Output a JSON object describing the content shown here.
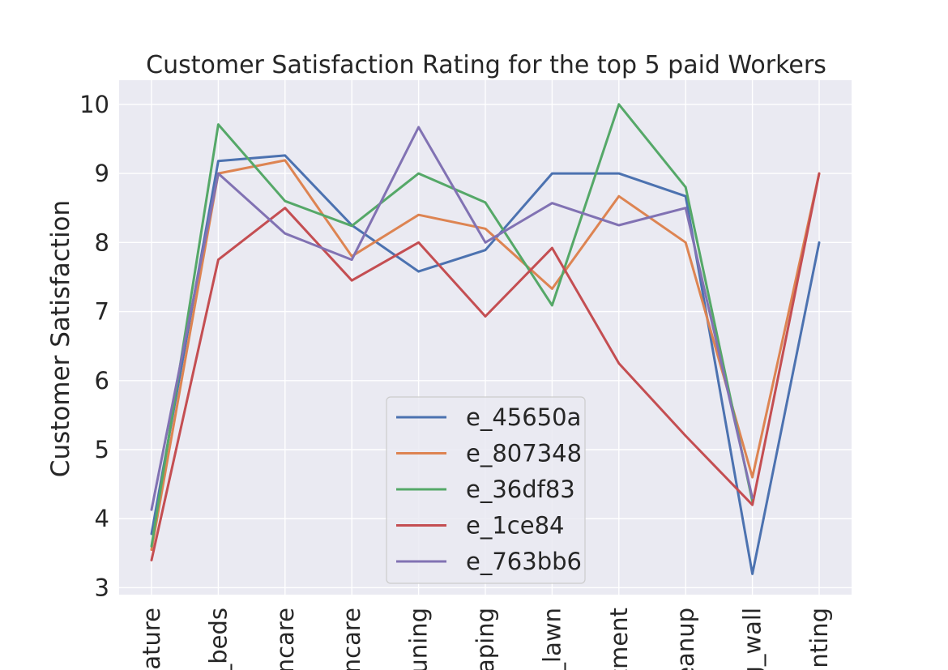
{
  "chart_data": {
    "type": "line",
    "title": "Customer Satisfaction Rating for the top 5 paid Workers",
    "xlabel": "",
    "ylabel": "Customer Satisfaction",
    "categories": [
      "eature",
      "_beds",
      "ncare",
      "ncare",
      "runing",
      "aping",
      "_lawn",
      "tment",
      "eanup",
      "g_wall",
      "anting"
    ],
    "yticks": [
      3,
      4,
      5,
      6,
      7,
      8,
      9,
      10
    ],
    "ylim": [
      2.9,
      10.35
    ],
    "grid": true,
    "legend_position": "lower-center",
    "series": [
      {
        "name": "e_45650a",
        "color": "#4c72b0",
        "values": [
          3.78,
          9.18,
          9.26,
          8.25,
          7.58,
          7.89,
          9.0,
          9.0,
          8.67,
          3.2,
          8.0
        ]
      },
      {
        "name": "e_807348",
        "color": "#dd8452",
        "values": [
          3.55,
          9.0,
          9.19,
          7.8,
          8.4,
          8.2,
          7.33,
          8.67,
          8.0,
          4.6,
          9.0
        ]
      },
      {
        "name": "e_36df83",
        "color": "#55a868",
        "values": [
          3.6,
          9.71,
          8.6,
          8.24,
          9.0,
          8.58,
          7.09,
          10.0,
          8.8,
          4.25,
          null
        ]
      },
      {
        "name": "e_1ce84",
        "color": "#c44e52",
        "values": [
          3.4,
          7.75,
          8.5,
          7.45,
          8.0,
          6.93,
          7.92,
          6.25,
          5.2,
          4.2,
          9.0
        ]
      },
      {
        "name": "e_763bb6",
        "color": "#8172b3",
        "values": [
          4.13,
          9.0,
          8.13,
          7.75,
          9.67,
          8.0,
          8.57,
          8.25,
          8.5,
          4.3,
          null
        ]
      }
    ]
  }
}
